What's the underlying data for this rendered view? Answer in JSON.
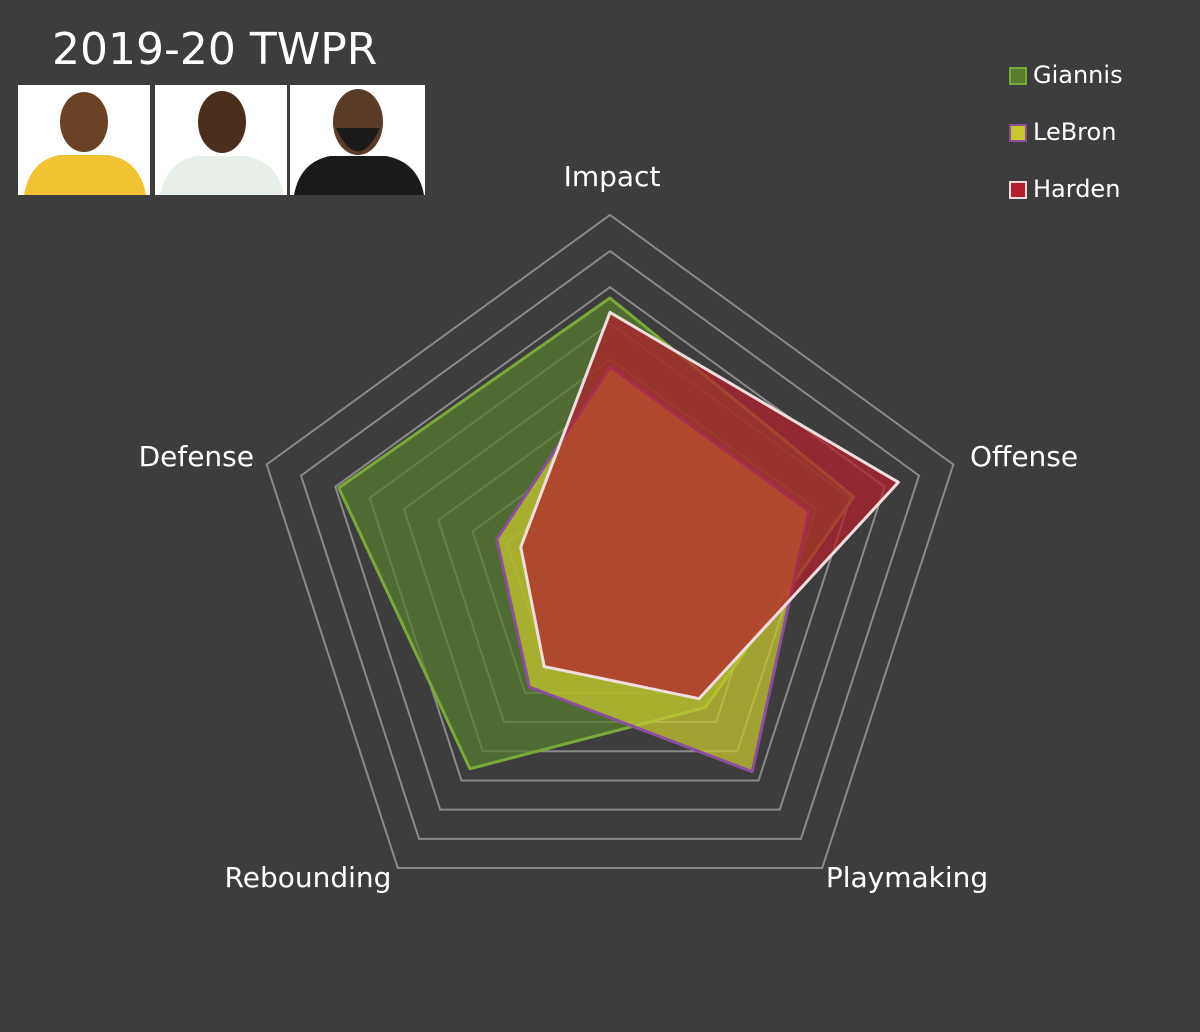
{
  "chart_data": {
    "type": "radar",
    "title": "2019-20 TWPR",
    "categories": [
      "Impact",
      "Offense",
      "Playmaking",
      "Rebounding",
      "Defense"
    ],
    "series": [
      {
        "name": "Giannis",
        "color": "#587d2c",
        "edge_color": "#7aa83a",
        "values": [
          7.7,
          7.1,
          4.5,
          6.6,
          7.9
        ]
      },
      {
        "name": "LeBron",
        "color": "#c9c92e",
        "edge_color": "#8a4fa0",
        "values": [
          5.8,
          5.8,
          6.7,
          3.8,
          3.3
        ]
      },
      {
        "name": "Harden",
        "color": "#b3202c",
        "edge_color": "#f2dede",
        "values": [
          7.3,
          8.4,
          4.2,
          3.1,
          2.6
        ]
      }
    ],
    "rlim": [
      0,
      10
    ],
    "rticks": [
      1,
      2,
      3,
      4,
      5,
      6,
      7,
      8,
      9,
      10
    ],
    "legend": "top-right"
  }
}
